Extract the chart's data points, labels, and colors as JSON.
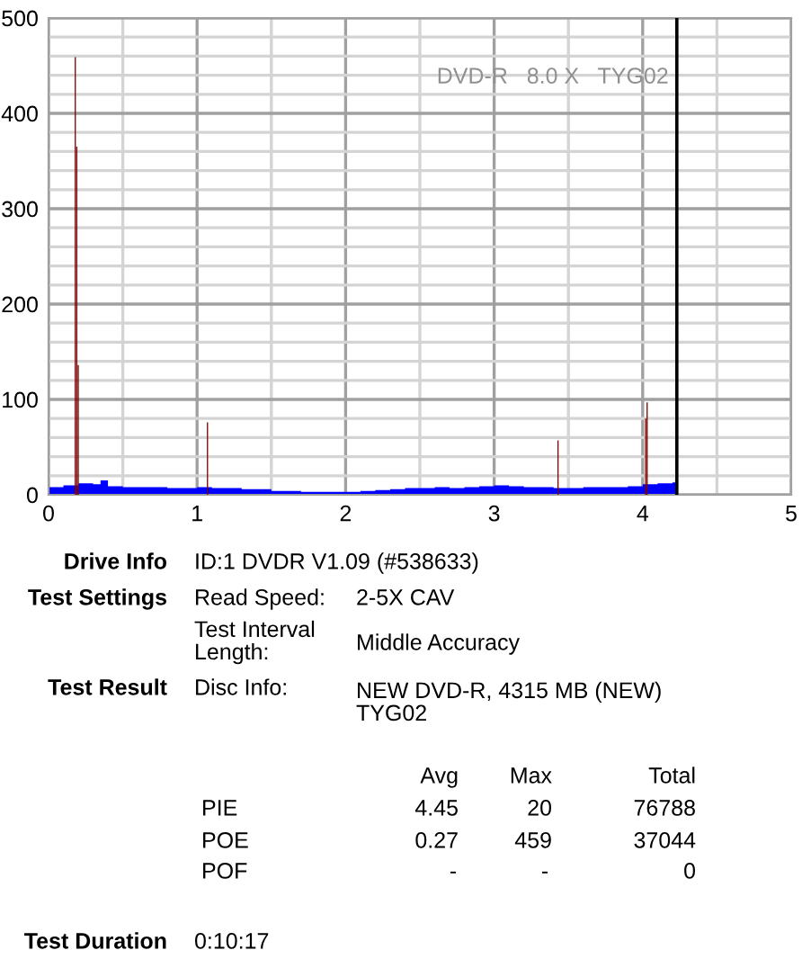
{
  "chart_data": {
    "type": "area",
    "xlim": [
      0,
      5
    ],
    "ylim": [
      0,
      500
    ],
    "xticks": [
      0,
      {
        "value": 0.5,
        "label": null
      },
      1,
      {
        "value": 1.5,
        "label": null
      },
      2,
      {
        "value": 2.5,
        "label": null
      },
      3,
      {
        "value": 3.5,
        "label": null
      },
      4,
      {
        "value": 4.5,
        "label": null
      },
      5
    ],
    "yticks": [
      0,
      {
        "value": 20,
        "label": null
      },
      {
        "value": 40,
        "label": null
      },
      {
        "value": 60,
        "label": null
      },
      {
        "value": 80,
        "label": null
      },
      100,
      {
        "value": 120,
        "label": null
      },
      {
        "value": 140,
        "label": null
      },
      {
        "value": 160,
        "label": null
      },
      {
        "value": 180,
        "label": null
      },
      200,
      {
        "value": 220,
        "label": null
      },
      {
        "value": 240,
        "label": null
      },
      {
        "value": 260,
        "label": null
      },
      {
        "value": 280,
        "label": null
      },
      300,
      {
        "value": 320,
        "label": null
      },
      {
        "value": 340,
        "label": null
      },
      {
        "value": 360,
        "label": null
      },
      {
        "value": 380,
        "label": null
      },
      400,
      {
        "value": 420,
        "label": null
      },
      {
        "value": 440,
        "label": null
      },
      {
        "value": 460,
        "label": null
      },
      {
        "value": 480,
        "label": null
      },
      500
    ],
    "grid": true,
    "series": [
      {
        "color": "#0000ff",
        "x": [
          0,
          0.1,
          0.2,
          0.3,
          0.35,
          0.4,
          0.5,
          0.6,
          0.7,
          0.8,
          0.9,
          1.0,
          1.1,
          1.2,
          1.3,
          1.4,
          1.5,
          1.6,
          1.7,
          1.8,
          1.9,
          2.0,
          2.1,
          2.2,
          2.3,
          2.4,
          2.5,
          2.6,
          2.7,
          2.8,
          2.9,
          3.0,
          3.1,
          3.2,
          3.3,
          3.4,
          3.5,
          3.6,
          3.7,
          3.8,
          3.9,
          4.0,
          4.1,
          4.2,
          4.23
        ],
        "values": [
          8,
          10,
          12,
          11,
          15,
          9,
          8,
          8,
          8,
          7,
          7,
          8,
          7,
          7,
          6,
          6,
          4,
          4,
          3,
          3,
          3,
          3,
          4,
          5,
          6,
          7,
          7,
          8,
          7,
          8,
          9,
          10,
          9,
          8,
          8,
          7,
          7,
          8,
          8,
          8,
          9,
          11,
          12,
          13,
          18
        ]
      },
      {
        "type": "bar",
        "color": "#800000",
        "x": [
          0.18,
          0.19,
          0.2,
          1.07,
          3.43,
          4.02,
          4.03
        ],
        "values": [
          459,
          365,
          136,
          76,
          57,
          80,
          97
        ]
      }
    ],
    "ref_lines": [
      {
        "axis": "x",
        "value": 4.23,
        "color": "#000000"
      }
    ],
    "annotations": [
      "DVD-R   8.0 X   TYG02",
      "Drive Info",
      "ID:1 DVDR V1.09 (#538633)",
      "Test Settings",
      "Read Speed:",
      "2-5X CAV",
      "Test Interval\nLength:",
      "Middle Accuracy",
      "Test Result",
      "Disc Info:",
      "NEW DVD-R, 4315 MB (NEW)\nTYG02",
      "Avg",
      "Max",
      "Total",
      "PIE",
      "4.45",
      "20",
      "76788",
      "POE",
      "0.27",
      "459",
      "37044",
      "POF",
      "-",
      "-",
      "0",
      "Test Duration",
      "0:10:17"
    ]
  }
}
